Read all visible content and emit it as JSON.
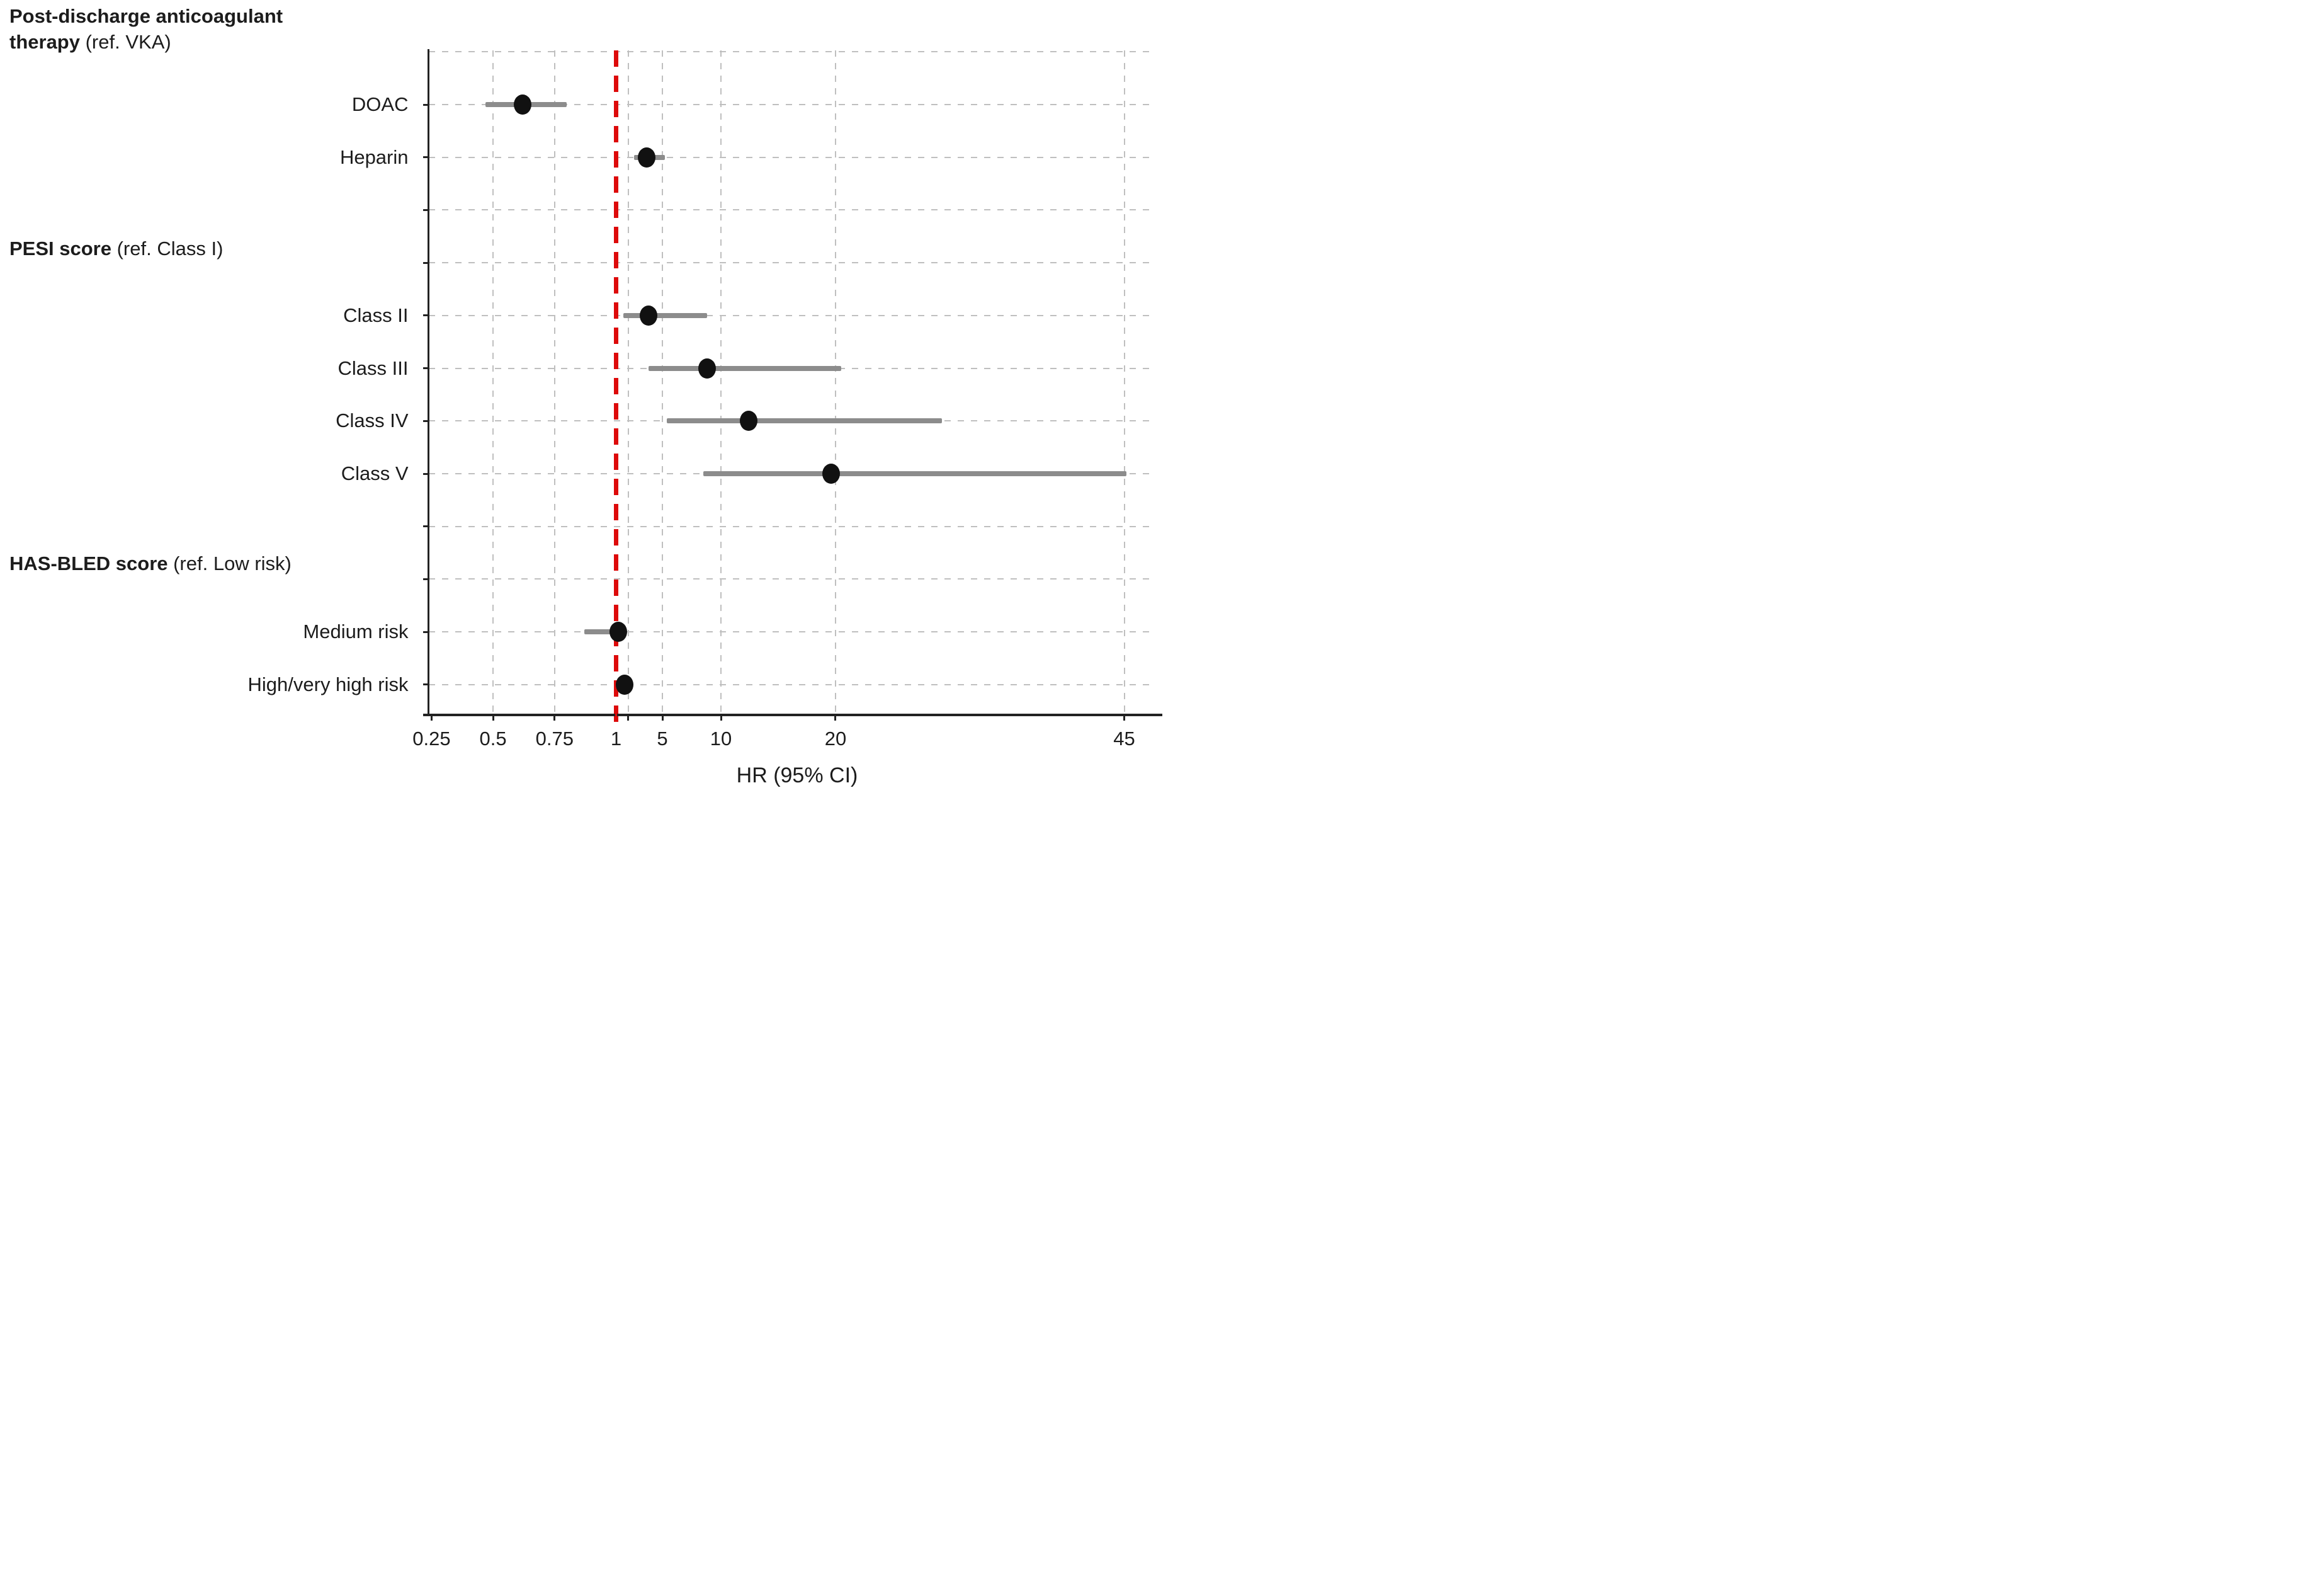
{
  "colors": {
    "background": "#ffffff",
    "reference_line": "#dd0a0a",
    "ci_bar": "#8c8c8c",
    "marker": "#111111",
    "gridline": "#bfbfbf",
    "axis": "#222222",
    "text": "#1c1c1c"
  },
  "chart_data": {
    "type": "forest",
    "xlabel": "HR (95% CI)",
    "x_scale": "piecewise linear: compressed segment 0.25-1, near-linear segment 2-45, scale break between 1 and 2",
    "reference_line_x": 1,
    "x_ticks": [
      {
        "value": 0.25,
        "label": "0.25"
      },
      {
        "value": 0.5,
        "label": "0.5"
      },
      {
        "value": 0.75,
        "label": "0.75"
      },
      {
        "value": 1,
        "label": "1"
      },
      {
        "value": 2,
        "label": ""
      },
      {
        "value": 5,
        "label": "5"
      },
      {
        "value": 10,
        "label": "10"
      },
      {
        "value": 20,
        "label": "20"
      },
      {
        "value": 45,
        "label": "45"
      }
    ],
    "vertical_gridline_values": [
      0.5,
      0.75,
      2,
      5,
      10,
      20,
      45
    ],
    "axis_anchor_fractions": [
      [
        0.25,
        0.0043
      ],
      [
        1,
        0.2592
      ],
      [
        2,
        0.2758
      ],
      [
        5,
        0.3232
      ],
      [
        10,
        0.4041
      ],
      [
        20,
        0.5624
      ],
      [
        45,
        0.9613
      ]
    ],
    "n_row_slots": 12,
    "row_first_frac": 0.0817,
    "row_step_frac": 0.0795,
    "groups": [
      {
        "header_bold": "Post-discharge anticoagulant therapy",
        "header_ref": "(ref. VKA)",
        "header_row_slot": null,
        "items": [
          {
            "label": "DOAC",
            "hr": 0.62,
            "ci_low": 0.47,
            "ci_high": 0.8,
            "row": 1
          },
          {
            "label": "Heparin",
            "hr": 3.6,
            "ci_low": 2.5,
            "ci_high": 5.2,
            "row": 2
          }
        ]
      },
      {
        "header_bold": "PESI score",
        "header_ref": "(ref. Class I)",
        "header_row_slot": 3.73,
        "items": [
          {
            "label": "Class II",
            "hr": 3.8,
            "ci_low": 1.6,
            "ci_high": 8.8,
            "row": 5
          },
          {
            "label": "Class III",
            "hr": 8.8,
            "ci_low": 3.8,
            "ci_high": 20.5,
            "row": 6
          },
          {
            "label": "Class IV",
            "hr": 12.4,
            "ci_low": 5.4,
            "ci_high": 29.2,
            "row": 7
          },
          {
            "label": "Class V",
            "hr": 19.6,
            "ci_low": 8.5,
            "ci_high": 45.2,
            "row": 8
          }
        ]
      },
      {
        "header_bold": "HAS-BLED score",
        "header_ref": "(ref. Low risk)",
        "header_row_slot": 9.71,
        "items": [
          {
            "label": "Medium risk",
            "hr": 1.2,
            "ci_low": 0.87,
            "ci_high": 1.8,
            "row": 11
          },
          {
            "label": "High/very high risk",
            "hr": 1.7,
            "ci_low": 1.2,
            "ci_high": 2.2,
            "row": 12
          }
        ]
      }
    ]
  },
  "layout_note": "grid on (dashed), no legend, left+bottom solid axes only"
}
